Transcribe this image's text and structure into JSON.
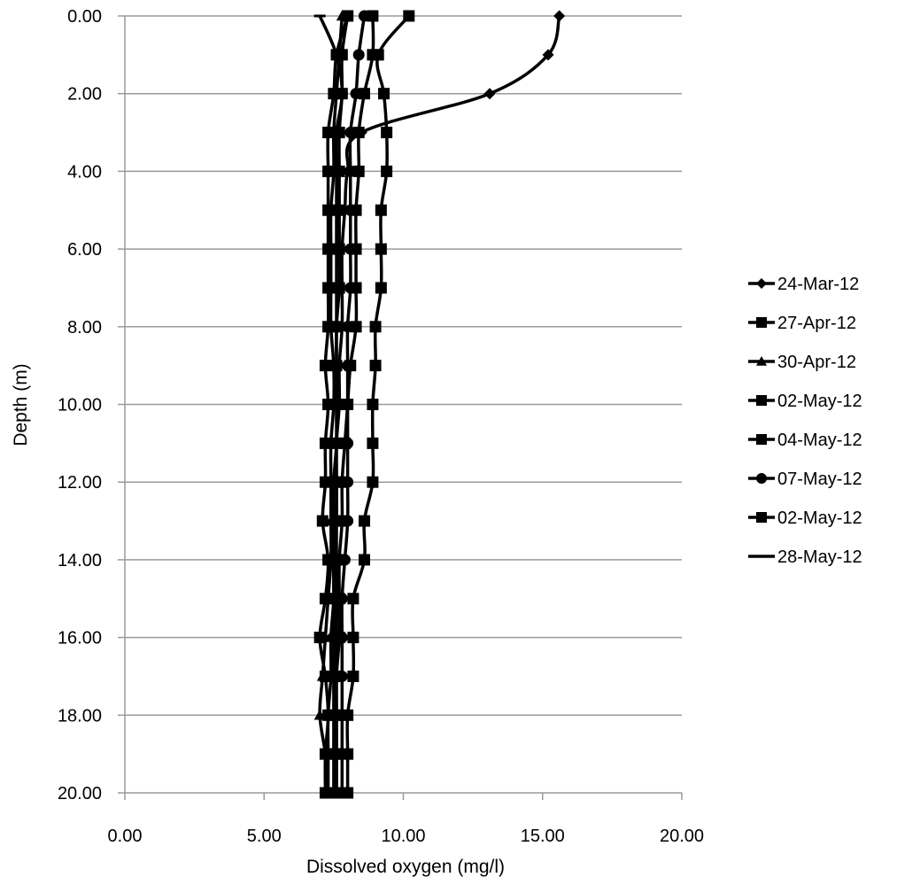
{
  "chart_data": {
    "type": "line",
    "title": "",
    "xlabel": "Dissolved oxygen (mg/l)",
    "ylabel": "Depth (m)",
    "xlim": [
      0,
      20
    ],
    "ylim": [
      0,
      20
    ],
    "y_inverted": true,
    "x_axis_position": "top-and-bottom-labels",
    "x_ticks": [
      "0.00",
      "5.00",
      "10.00",
      "15.00",
      "20.00"
    ],
    "y_ticks": [
      "0.00",
      "2.00",
      "4.00",
      "6.00",
      "8.00",
      "10.00",
      "12.00",
      "14.00",
      "16.00",
      "18.00",
      "20.00"
    ],
    "grid": "horizontal",
    "legend_position": "right",
    "colors": {
      "series": "#000000",
      "grid": "#9a9a9a"
    },
    "series": [
      {
        "name": "24-Mar-12",
        "marker": "diamond",
        "points": [
          [
            15.6,
            0
          ],
          [
            15.2,
            1
          ],
          [
            13.1,
            2
          ],
          [
            8.5,
            3
          ],
          [
            8.0,
            4
          ],
          [
            7.9,
            5
          ],
          [
            7.8,
            6
          ],
          [
            7.8,
            7
          ],
          [
            7.8,
            8
          ],
          [
            7.7,
            9
          ],
          [
            7.7,
            10
          ],
          [
            7.6,
            11
          ],
          [
            7.6,
            12
          ],
          [
            7.6,
            13
          ],
          [
            7.5,
            14
          ],
          [
            7.5,
            15
          ],
          [
            7.4,
            16
          ],
          [
            7.4,
            17
          ],
          [
            7.3,
            18
          ],
          [
            7.3,
            19
          ],
          [
            7.3,
            20
          ]
        ]
      },
      {
        "name": "27-Apr-12",
        "marker": "square",
        "points": [
          [
            10.2,
            0
          ],
          [
            9.1,
            1
          ],
          [
            9.3,
            2
          ],
          [
            9.4,
            3
          ],
          [
            9.4,
            4
          ],
          [
            9.2,
            5
          ],
          [
            9.2,
            6
          ],
          [
            9.2,
            7
          ],
          [
            9.0,
            8
          ],
          [
            9.0,
            9
          ],
          [
            8.9,
            10
          ],
          [
            8.9,
            11
          ],
          [
            8.9,
            12
          ],
          [
            8.6,
            13
          ],
          [
            8.6,
            14
          ],
          [
            8.2,
            15
          ],
          [
            8.2,
            16
          ],
          [
            8.2,
            17
          ],
          [
            8.0,
            18
          ],
          [
            8.0,
            19
          ],
          [
            8.0,
            20
          ]
        ]
      },
      {
        "name": "30-Apr-12",
        "marker": "triangle",
        "points": [
          [
            7.8,
            0
          ],
          [
            7.7,
            1
          ],
          [
            7.6,
            2
          ],
          [
            7.5,
            3
          ],
          [
            7.5,
            4
          ],
          [
            7.4,
            5
          ],
          [
            7.4,
            6
          ],
          [
            7.4,
            7
          ],
          [
            7.4,
            8
          ],
          [
            7.5,
            9
          ],
          [
            7.5,
            10
          ],
          [
            7.4,
            11
          ],
          [
            7.4,
            12
          ],
          [
            7.4,
            13
          ],
          [
            7.4,
            14
          ],
          [
            7.3,
            15
          ],
          [
            7.2,
            16
          ],
          [
            7.1,
            17
          ],
          [
            7.0,
            18
          ],
          [
            7.2,
            19
          ],
          [
            7.3,
            20
          ]
        ]
      },
      {
        "name": "02-May-12",
        "marker": "square",
        "points": [
          [
            8.0,
            0
          ],
          [
            7.8,
            1
          ],
          [
            7.8,
            2
          ],
          [
            7.7,
            3
          ],
          [
            7.7,
            4
          ],
          [
            7.7,
            5
          ],
          [
            7.7,
            6
          ],
          [
            7.7,
            7
          ],
          [
            7.6,
            8
          ],
          [
            7.6,
            9
          ],
          [
            7.6,
            10
          ],
          [
            7.6,
            11
          ],
          [
            7.6,
            12
          ],
          [
            7.6,
            13
          ],
          [
            7.6,
            14
          ],
          [
            7.6,
            15
          ],
          [
            7.6,
            16
          ],
          [
            7.6,
            17
          ],
          [
            7.6,
            18
          ],
          [
            7.6,
            19
          ],
          [
            7.6,
            20
          ]
        ]
      },
      {
        "name": "04-May-12",
        "marker": "square",
        "points": [
          [
            8.0,
            0
          ],
          [
            7.6,
            1
          ],
          [
            7.5,
            2
          ],
          [
            7.3,
            3
          ],
          [
            7.3,
            4
          ],
          [
            7.3,
            5
          ],
          [
            7.3,
            6
          ],
          [
            7.3,
            7
          ],
          [
            7.3,
            8
          ],
          [
            7.2,
            9
          ],
          [
            7.3,
            10
          ],
          [
            7.2,
            11
          ],
          [
            7.2,
            12
          ],
          [
            7.1,
            13
          ],
          [
            7.3,
            14
          ],
          [
            7.2,
            15
          ],
          [
            7.0,
            16
          ],
          [
            7.2,
            17
          ],
          [
            7.3,
            18
          ],
          [
            7.2,
            19
          ],
          [
            7.2,
            20
          ]
        ]
      },
      {
        "name": "07-May-12",
        "marker": "circle",
        "points": [
          [
            8.6,
            0
          ],
          [
            8.4,
            1
          ],
          [
            8.3,
            2
          ],
          [
            8.1,
            3
          ],
          [
            8.1,
            4
          ],
          [
            8.1,
            5
          ],
          [
            8.1,
            6
          ],
          [
            8.1,
            7
          ],
          [
            8.0,
            8
          ],
          [
            8.0,
            9
          ],
          [
            8.0,
            10
          ],
          [
            8.0,
            11
          ],
          [
            8.0,
            12
          ],
          [
            8.0,
            13
          ],
          [
            7.9,
            14
          ],
          [
            7.8,
            15
          ],
          [
            7.8,
            16
          ],
          [
            7.8,
            17
          ],
          [
            7.8,
            18
          ],
          [
            7.8,
            19
          ],
          [
            7.8,
            20
          ]
        ]
      },
      {
        "name": "02-May-12",
        "marker": "square",
        "points": [
          [
            8.9,
            0
          ],
          [
            8.9,
            1
          ],
          [
            8.6,
            2
          ],
          [
            8.4,
            3
          ],
          [
            8.4,
            4
          ],
          [
            8.3,
            5
          ],
          [
            8.3,
            6
          ],
          [
            8.3,
            7
          ],
          [
            8.3,
            8
          ],
          [
            8.1,
            9
          ],
          [
            8.0,
            10
          ],
          [
            7.9,
            11
          ],
          [
            7.8,
            12
          ],
          [
            7.8,
            13
          ],
          [
            7.7,
            14
          ],
          [
            7.7,
            15
          ],
          [
            7.7,
            16
          ],
          [
            7.6,
            17
          ],
          [
            7.6,
            18
          ],
          [
            7.6,
            19
          ],
          [
            7.6,
            20
          ]
        ]
      },
      {
        "name": "28-May-12",
        "marker": "dash",
        "points": [
          [
            7.0,
            0
          ],
          [
            7.6,
            1
          ],
          [
            7.8,
            2
          ],
          [
            7.6,
            3
          ],
          [
            7.6,
            4
          ],
          [
            7.6,
            5
          ],
          [
            7.6,
            6
          ],
          [
            7.6,
            7
          ],
          [
            7.6,
            8
          ],
          [
            7.6,
            9
          ],
          [
            7.6,
            10
          ],
          [
            7.6,
            11
          ],
          [
            7.5,
            12
          ],
          [
            7.5,
            13
          ],
          [
            7.5,
            14
          ],
          [
            7.5,
            15
          ],
          [
            7.5,
            16
          ],
          [
            7.5,
            17
          ],
          [
            7.5,
            18
          ],
          [
            7.5,
            19
          ],
          [
            7.5,
            20
          ]
        ]
      }
    ]
  }
}
